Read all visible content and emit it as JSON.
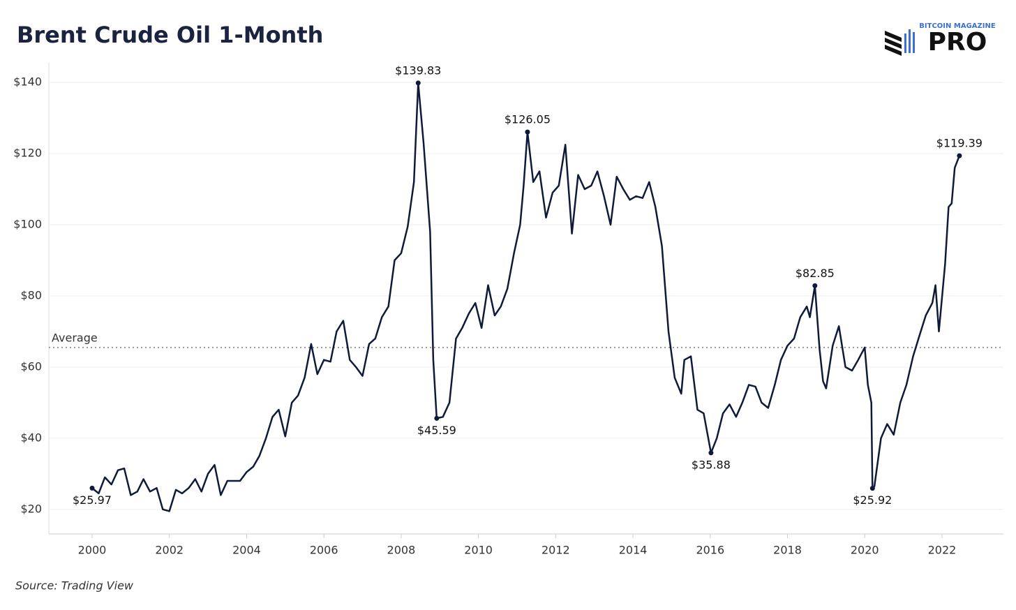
{
  "logo": {
    "brand": "BITCOIN MAGAZINE",
    "product": "PRO"
  },
  "chart_data": {
    "type": "line",
    "title": "Brent Crude Oil 1-Month",
    "source": "Source: Trading View",
    "xlim": [
      1998.88,
      2023.59
    ],
    "xticks": [
      2000,
      2002,
      2004,
      2006,
      2008,
      2010,
      2012,
      2014,
      2016,
      2018,
      2020,
      2022
    ],
    "ylim": [
      13.1,
      145.5
    ],
    "yticks": [
      {
        "value": 20,
        "label": "$20"
      },
      {
        "value": 40,
        "label": "$40"
      },
      {
        "value": 60,
        "label": "$60"
      },
      {
        "value": 80,
        "label": "$80"
      },
      {
        "value": 100,
        "label": "$100"
      },
      {
        "value": 120,
        "label": "$120"
      },
      {
        "value": 140,
        "label": "$140"
      }
    ],
    "grid": true,
    "average": {
      "label": "Average",
      "value": 65.5
    },
    "series": [
      {
        "name": "Brent Crude Oil 1-Month",
        "color": "#0f1a3a",
        "x": [
          2000.0,
          2000.17,
          2000.33,
          2000.5,
          2000.67,
          2000.83,
          2001.0,
          2001.17,
          2001.33,
          2001.5,
          2001.67,
          2001.83,
          2002.0,
          2002.17,
          2002.33,
          2002.5,
          2002.67,
          2002.83,
          2003.0,
          2003.17,
          2003.33,
          2003.5,
          2003.67,
          2003.83,
          2004.0,
          2004.17,
          2004.33,
          2004.5,
          2004.67,
          2004.83,
          2005.0,
          2005.17,
          2005.33,
          2005.5,
          2005.67,
          2005.83,
          2006.0,
          2006.17,
          2006.33,
          2006.5,
          2006.67,
          2006.83,
          2007.0,
          2007.17,
          2007.33,
          2007.5,
          2007.67,
          2007.83,
          2008.0,
          2008.17,
          2008.33,
          2008.44,
          2008.58,
          2008.75,
          2008.83,
          2008.92,
          2009.08,
          2009.25,
          2009.42,
          2009.58,
          2009.75,
          2009.92,
          2010.08,
          2010.25,
          2010.42,
          2010.58,
          2010.75,
          2010.92,
          2011.08,
          2011.17,
          2011.27,
          2011.42,
          2011.58,
          2011.75,
          2011.92,
          2012.08,
          2012.25,
          2012.42,
          2012.58,
          2012.75,
          2012.92,
          2013.08,
          2013.25,
          2013.42,
          2013.58,
          2013.75,
          2013.92,
          2014.08,
          2014.25,
          2014.42,
          2014.58,
          2014.75,
          2014.92,
          2015.08,
          2015.25,
          2015.33,
          2015.5,
          2015.67,
          2015.83,
          2016.02,
          2016.17,
          2016.33,
          2016.5,
          2016.67,
          2016.83,
          2017.0,
          2017.17,
          2017.33,
          2017.5,
          2017.67,
          2017.83,
          2018.0,
          2018.17,
          2018.33,
          2018.5,
          2018.58,
          2018.71,
          2018.83,
          2018.92,
          2019.0,
          2019.17,
          2019.33,
          2019.5,
          2019.67,
          2019.83,
          2020.0,
          2020.08,
          2020.17,
          2020.2,
          2020.25,
          2020.42,
          2020.58,
          2020.75,
          2020.92,
          2021.08,
          2021.25,
          2021.42,
          2021.58,
          2021.75,
          2021.83,
          2021.92,
          2022.08,
          2022.17,
          2022.25,
          2022.33,
          2022.45
        ],
        "values": [
          25.97,
          24.5,
          29,
          27,
          31,
          31.5,
          24,
          25,
          28.5,
          25,
          26,
          20,
          19.5,
          25.5,
          24.5,
          26,
          28.5,
          25,
          30,
          32.5,
          24,
          28,
          28,
          28,
          30.5,
          32,
          35,
          40,
          46,
          48,
          40.5,
          50,
          52,
          57,
          66.5,
          58,
          62,
          61.5,
          70,
          73,
          62,
          60,
          57.5,
          66.5,
          68,
          74,
          77,
          90,
          92,
          99.5,
          112,
          139.83,
          123,
          98,
          62,
          45.59,
          46,
          50,
          68,
          71,
          75,
          78,
          71,
          83,
          74.5,
          77,
          82,
          92,
          100,
          111,
          126.05,
          112,
          115,
          102,
          109,
          111,
          122.5,
          97.5,
          114,
          110,
          111,
          115,
          108,
          100,
          113.5,
          110,
          107,
          108,
          107.5,
          112,
          105,
          94,
          70,
          57,
          52.5,
          62,
          63,
          48,
          47,
          35.88,
          40,
          47,
          49.5,
          46,
          50,
          55,
          54.5,
          50,
          48.5,
          55,
          62,
          66,
          68,
          74,
          77,
          74,
          82.85,
          65,
          56,
          54,
          66,
          71.5,
          60,
          59,
          62,
          65.5,
          55,
          50,
          25.92,
          26.5,
          40,
          44,
          41,
          50,
          55,
          63,
          69,
          74.5,
          78,
          83,
          70,
          89,
          105,
          106,
          116,
          119.39
        ],
        "value_labels": [
          "$25.97",
          null,
          null,
          null,
          null,
          null,
          null,
          null,
          null,
          null,
          null,
          null,
          null,
          null,
          null,
          null,
          null,
          null,
          null,
          null,
          null,
          null,
          null,
          null,
          null,
          null,
          null,
          null,
          null,
          null,
          null,
          null,
          null,
          null,
          null,
          null,
          null,
          null,
          null,
          null,
          null,
          null,
          null,
          null,
          null,
          null,
          null,
          null,
          null,
          null,
          null,
          "$139.83",
          null,
          null,
          null,
          "$45.59",
          null,
          null,
          null,
          null,
          null,
          null,
          null,
          null,
          null,
          null,
          null,
          null,
          null,
          null,
          "$126.05",
          null,
          null,
          null,
          null,
          null,
          null,
          null,
          null,
          null,
          null,
          null,
          null,
          null,
          null,
          null,
          null,
          null,
          null,
          null,
          null,
          null,
          null,
          null,
          null,
          null,
          null,
          null,
          null,
          "$35.88",
          null,
          null,
          null,
          null,
          null,
          null,
          null,
          null,
          null,
          null,
          null,
          null,
          null,
          null,
          null,
          null,
          "$82.85",
          null,
          null,
          null,
          null,
          null,
          null,
          null,
          null,
          null,
          null,
          null,
          "$25.92",
          null,
          null,
          null,
          null,
          null,
          null,
          null,
          null,
          null,
          null,
          null,
          null,
          null,
          null,
          null,
          null,
          "$119.39"
        ]
      }
    ]
  }
}
